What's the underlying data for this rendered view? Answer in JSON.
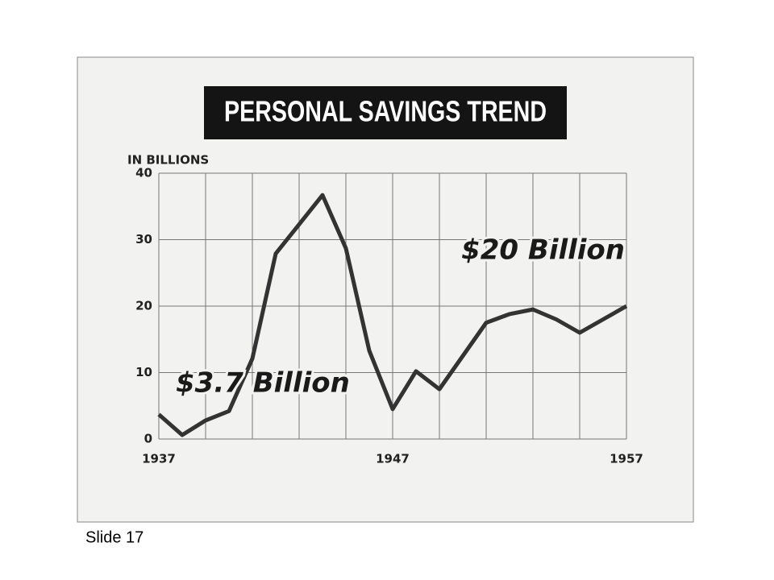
{
  "chart_data": {
    "type": "line",
    "title": "PERSONAL SAVINGS TREND",
    "y_label": "IN BILLIONS",
    "x": [
      1937,
      1938,
      1939,
      1940,
      1941,
      1942,
      1943,
      1944,
      1945,
      1946,
      1947,
      1948,
      1949,
      1950,
      1951,
      1952,
      1953,
      1954,
      1955,
      1956,
      1957
    ],
    "series": [
      {
        "name": "Personal savings",
        "color": "#333333",
        "values": [
          3.7,
          0.6,
          2.8,
          4.2,
          12.1,
          27.9,
          32.3,
          36.7,
          28.7,
          13.3,
          4.5,
          10.2,
          7.5,
          12.5,
          17.5,
          18.8,
          19.5,
          18,
          16,
          18,
          20
        ]
      }
    ],
    "xlim": [
      1937,
      1957
    ],
    "xticks": [
      1937,
      1947,
      1957
    ],
    "xgrid": [
      1937,
      1939,
      1941,
      1943,
      1945,
      1947,
      1949,
      1951,
      1953,
      1955,
      1957
    ],
    "ylim": [
      0,
      40
    ],
    "yticks": [
      0,
      10,
      20,
      30,
      40
    ],
    "grid": true,
    "annotations": [
      {
        "text": "$3.7 Billion"
      },
      {
        "text": "$20 Billion"
      }
    ]
  },
  "footer": "Slide 17"
}
